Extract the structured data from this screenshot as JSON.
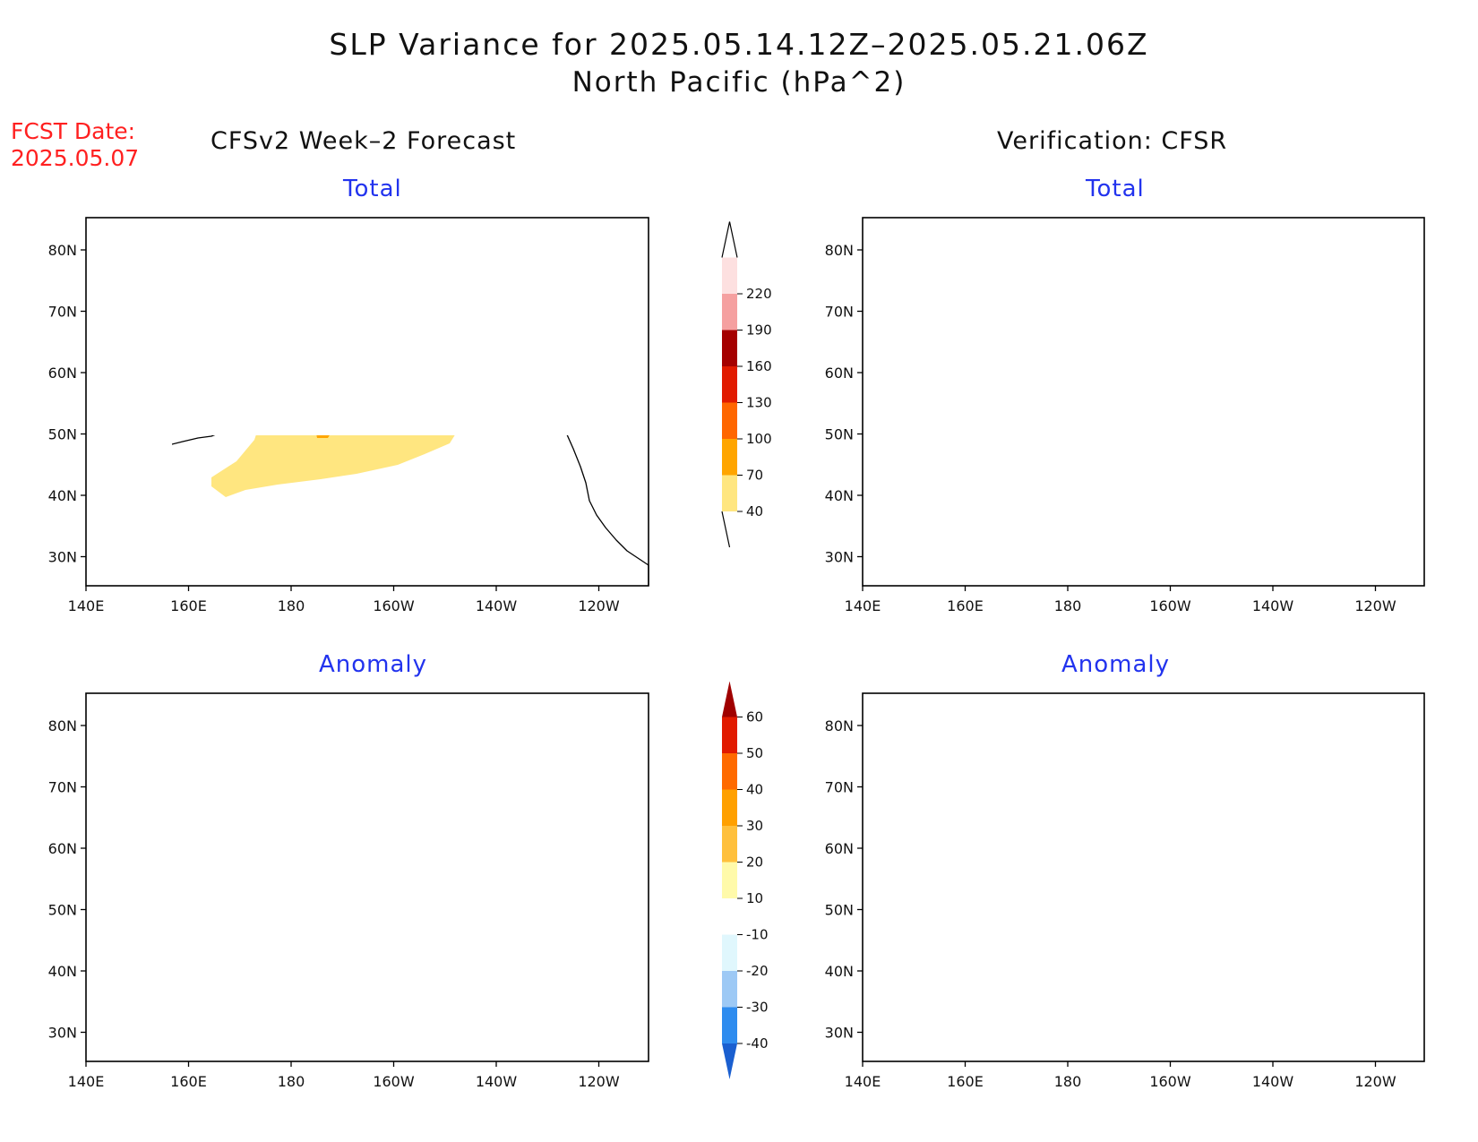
{
  "title": "SLP Variance for 2025.05.14.12Z–2025.05.21.06Z",
  "subtitle": "North Pacific (hPa^2)",
  "fcst_label": "FCST Date:",
  "fcst_date": "2025.05.07",
  "left_column_title": "CFSv2 Week–2 Forecast",
  "right_column_title": "Verification: CFSR",
  "panels": {
    "fcst_total": {
      "title": "Total"
    },
    "ver_total": {
      "title": "Total"
    },
    "fcst_anom": {
      "title": "Anomaly"
    },
    "ver_anom": {
      "title": "Anomaly"
    }
  },
  "axes": {
    "lon_ticks": [
      "140E",
      "160E",
      "180",
      "160W",
      "140W",
      "120W"
    ],
    "lat_ticks": [
      "80N",
      "70N",
      "60N",
      "50N",
      "40N",
      "30N"
    ]
  },
  "total_colorbar": {
    "levels": [
      "40",
      "70",
      "100",
      "130",
      "160",
      "190",
      "220"
    ],
    "colors": [
      "#ffe680",
      "#ffa500",
      "#ff6600",
      "#e11a00",
      "#a50000",
      "#f5a0a0",
      "#fde0e0"
    ]
  },
  "anomaly_colorbar": {
    "levels": [
      "-40",
      "-30",
      "-20",
      "-10",
      "10",
      "20",
      "30",
      "40",
      "50",
      "60"
    ],
    "colors": [
      "#1a5fd0",
      "#2e8cef",
      "#9dc9f5",
      "#e0f7fd",
      "#ffffff",
      "#fffaaa",
      "#ffc03c",
      "#ffa000",
      "#ff6a00",
      "#e11a00",
      "#a00000"
    ]
  }
}
